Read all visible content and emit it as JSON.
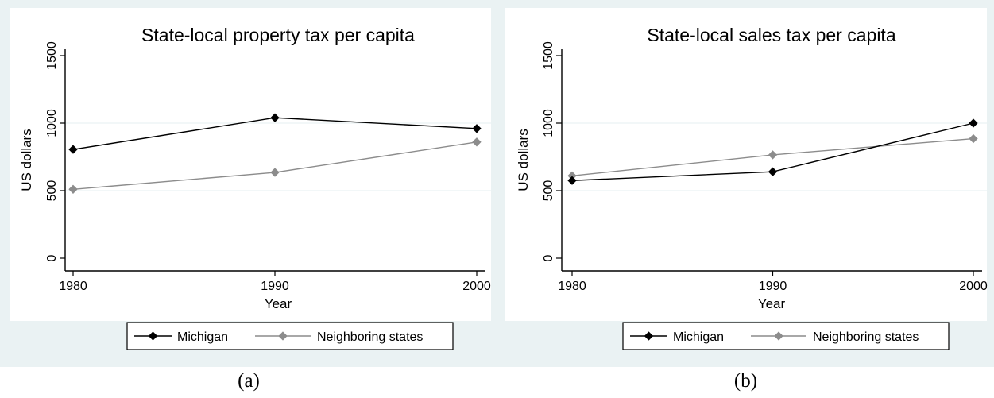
{
  "chart_data": [
    {
      "type": "line",
      "title": "State-local property tax per capita",
      "xlabel": "Year",
      "ylabel": "US dollars",
      "x": [
        1980,
        1990,
        2000
      ],
      "ylim": [
        0,
        1500
      ],
      "yticks": [
        "0",
        "500",
        "1000",
        "1500"
      ],
      "xticks": [
        "1980",
        "1990",
        "2000"
      ],
      "grid": true,
      "legend": "bottom",
      "series": [
        {
          "name": "Michigan",
          "values": [
            805,
            1040,
            960
          ],
          "color": "#000000"
        },
        {
          "name": "Neighboring states",
          "values": [
            510,
            635,
            860
          ],
          "color": "#8c8c8c"
        }
      ],
      "caption": "(a)"
    },
    {
      "type": "line",
      "title": "State-local sales tax per capita",
      "xlabel": "Year",
      "ylabel": "US dollars",
      "x": [
        1980,
        1990,
        2000
      ],
      "ylim": [
        0,
        1500
      ],
      "yticks": [
        "0",
        "500",
        "1000",
        "1500"
      ],
      "xticks": [
        "1980",
        "1990",
        "2000"
      ],
      "grid": true,
      "legend": "bottom",
      "series": [
        {
          "name": "Michigan",
          "values": [
            575,
            640,
            1000
          ],
          "color": "#000000"
        },
        {
          "name": "Neighboring states",
          "values": [
            610,
            765,
            885
          ],
          "color": "#8c8c8c"
        }
      ],
      "caption": "(b)"
    }
  ],
  "colors": {
    "panel_bg": "#eaf2f3",
    "plot_bg": "#ffffff",
    "grid": "#eaf2f3"
  }
}
